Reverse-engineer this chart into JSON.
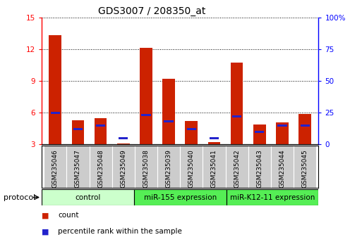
{
  "title": "GDS3007 / 208350_at",
  "samples": [
    "GSM235046",
    "GSM235047",
    "GSM235048",
    "GSM235049",
    "GSM235038",
    "GSM235039",
    "GSM235040",
    "GSM235041",
    "GSM235042",
    "GSM235043",
    "GSM235044",
    "GSM235045"
  ],
  "count_values": [
    13.3,
    5.3,
    5.5,
    3.1,
    12.1,
    9.2,
    5.2,
    3.2,
    10.7,
    4.9,
    5.1,
    5.9
  ],
  "percentile_values": [
    25,
    12,
    15,
    5,
    23,
    18,
    12,
    5,
    22,
    10,
    15,
    15
  ],
  "group_info": [
    {
      "label": "control",
      "start": 0,
      "end": 4,
      "color": "#ccffcc"
    },
    {
      "label": "miR-155 expression",
      "start": 4,
      "end": 8,
      "color": "#55ee55"
    },
    {
      "label": "miR-K12-11 expression",
      "start": 8,
      "end": 12,
      "color": "#55ee55"
    }
  ],
  "ylim_left": [
    3,
    15
  ],
  "ylim_right": [
    0,
    100
  ],
  "yticks_left": [
    3,
    6,
    9,
    12,
    15
  ],
  "ytick_labels_left": [
    "3",
    "6",
    "9",
    "12",
    "15"
  ],
  "yticks_right": [
    0,
    25,
    50,
    75,
    100
  ],
  "ytick_labels_right": [
    "0",
    "25",
    "50",
    "75",
    "100%"
  ],
  "bar_color_red": "#cc2200",
  "bar_color_blue": "#2222cc",
  "bar_width": 0.55,
  "bg_color": "#ffffff",
  "plot_bg": "#ffffff",
  "grid_color": "#000000",
  "title_fontsize": 10,
  "tick_fontsize": 7.5,
  "label_fontsize": 6.5,
  "legend_fontsize": 7.5,
  "protocol_fontsize": 7.5
}
